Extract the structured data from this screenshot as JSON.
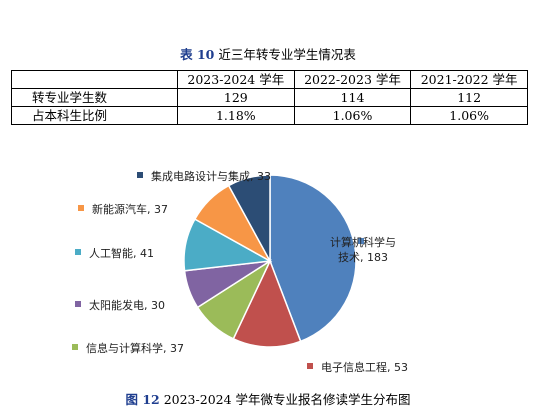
{
  "table": {
    "caption_num": "表 10",
    "caption_text": "近三年转专业学生情况表",
    "columns": [
      "",
      "2023-2024 学年",
      "2022-2023 学年",
      "2021-2022 学年"
    ],
    "rows": [
      {
        "label": "转专业学生数",
        "values": [
          "129",
          "114",
          "112"
        ]
      },
      {
        "label": "占本科生比例",
        "values": [
          "1.18%",
          "1.06%",
          "1.06%"
        ]
      }
    ]
  },
  "figure": {
    "caption_num": "图 12",
    "caption_text": "2023-2024 学年微专业报名修读学生分布图"
  },
  "chart_data": {
    "type": "pie",
    "slices": [
      {
        "label": "计算机科学与技术",
        "value": 183,
        "color": "#4f81bd",
        "label_lines": [
          "计算机科学与",
          "技术, 183"
        ]
      },
      {
        "label": "电子信息工程",
        "value": 53,
        "color": "#c0504d",
        "label_lines": [
          "电子信息工程, 53"
        ]
      },
      {
        "label": "信息与计算科学",
        "value": 37,
        "color": "#9bbb59",
        "label_lines": [
          "信息与计算科学, 37"
        ]
      },
      {
        "label": "太阳能发电",
        "value": 30,
        "color": "#8064a2",
        "label_lines": [
          "太阳能发电, 30"
        ]
      },
      {
        "label": "人工智能",
        "value": 41,
        "color": "#4bacc6",
        "label_lines": [
          "人工智能, 41"
        ]
      },
      {
        "label": "新能源汽车",
        "value": 37,
        "color": "#f79646",
        "label_lines": [
          "新能源汽车, 37"
        ]
      },
      {
        "label": "集成电路设计与集成",
        "value": 33,
        "color": "#2c4d75",
        "label_lines": [
          "集成电路设计与集成, 33"
        ]
      }
    ]
  }
}
